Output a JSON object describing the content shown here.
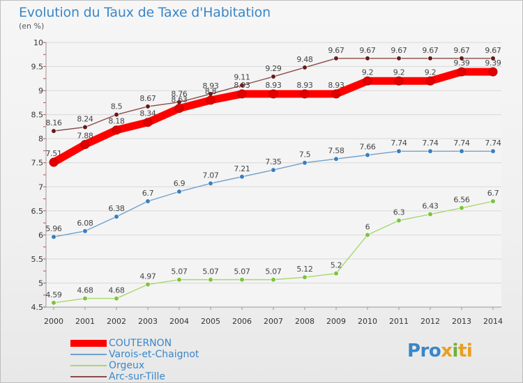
{
  "title": "Evolution du Taux de Taxe d'Habitation",
  "subtitle": "(en %)",
  "logo": {
    "parts": [
      {
        "text": "Pro",
        "color": "#3a86c8"
      },
      {
        "text": "x",
        "color": "#e8a020"
      },
      {
        "text": "i",
        "color": "#6bb33a"
      },
      {
        "text": "ti",
        "color": "#e8a020"
      }
    ]
  },
  "chart_data": {
    "type": "line",
    "title": "Evolution du Taux de Taxe d'Habitation",
    "subtitle": "(en %)",
    "ylabel": "",
    "xlabel": "",
    "ylim": [
      4.5,
      10
    ],
    "yticks": [
      "4.5",
      "5",
      "5.5",
      "6",
      "6.5",
      "7",
      "7.5",
      "8",
      "8.5",
      "9",
      "9.5",
      "10"
    ],
    "categories": [
      "2000",
      "2001",
      "2002",
      "2003",
      "2004",
      "2005",
      "2006",
      "2007",
      "2008",
      "2009",
      "2010",
      "2011",
      "2012",
      "2013",
      "2014"
    ],
    "grid": "horizontal",
    "legend_position": "bottom-left",
    "series": [
      {
        "name": "COUTERNON",
        "color": "#ff0000",
        "marker": "#e00000",
        "width": "thick",
        "values": [
          7.51,
          7.88,
          8.18,
          8.34,
          8.63,
          8.8,
          8.93,
          8.93,
          8.93,
          8.93,
          9.2,
          9.2,
          9.2,
          9.39,
          9.39
        ],
        "labels": [
          "7.51",
          "7.88",
          "8.18",
          "8.34",
          "8.63",
          "8.8",
          "8.93",
          "8.93",
          "8.93",
          "8.93",
          "9.2",
          "9.2",
          "9.2",
          "9.39",
          "9.39"
        ]
      },
      {
        "name": "Varois-et-Chaignot",
        "color": "#6fa0cc",
        "marker": "#3a7fbf",
        "width": "thin",
        "values": [
          5.96,
          6.08,
          6.38,
          6.7,
          6.9,
          7.07,
          7.21,
          7.35,
          7.5,
          7.58,
          7.66,
          7.74,
          7.74,
          7.74,
          7.74
        ],
        "labels": [
          "5.96",
          "6.08",
          "6.38",
          "6.7",
          "6.9",
          "7.07",
          "7.21",
          "7.35",
          "7.5",
          "7.58",
          "7.66",
          "7.74",
          "7.74",
          "7.74",
          "7.74"
        ]
      },
      {
        "name": "Orgeux",
        "color": "#a6d86a",
        "marker": "#7cc43c",
        "width": "thin",
        "values": [
          4.59,
          4.68,
          4.68,
          4.97,
          5.07,
          5.07,
          5.07,
          5.07,
          5.12,
          5.2,
          6,
          6.3,
          6.43,
          6.56,
          6.7
        ],
        "labels": [
          "4.59",
          "4.68",
          "4.68",
          "4.97",
          "5.07",
          "5.07",
          "5.07",
          "5.07",
          "5.12",
          "5.2",
          "6",
          "6.3",
          "6.43",
          "6.56",
          "6.7"
        ]
      },
      {
        "name": "Arc-sur-Tille",
        "color": "#8b4a4a",
        "marker": "#6a1a1a",
        "width": "thin",
        "values": [
          8.16,
          8.24,
          8.5,
          8.67,
          8.76,
          8.93,
          9.11,
          9.29,
          9.48,
          9.67,
          9.67,
          9.67,
          9.67,
          9.67,
          9.67
        ],
        "labels": [
          "8.16",
          "8.24",
          "8.5",
          "8.67",
          "8.76",
          "8.93",
          "9.11",
          "9.29",
          "9.48",
          "9.67",
          "9.67",
          "9.67",
          "9.67",
          "9.67",
          "9.67"
        ]
      }
    ]
  }
}
